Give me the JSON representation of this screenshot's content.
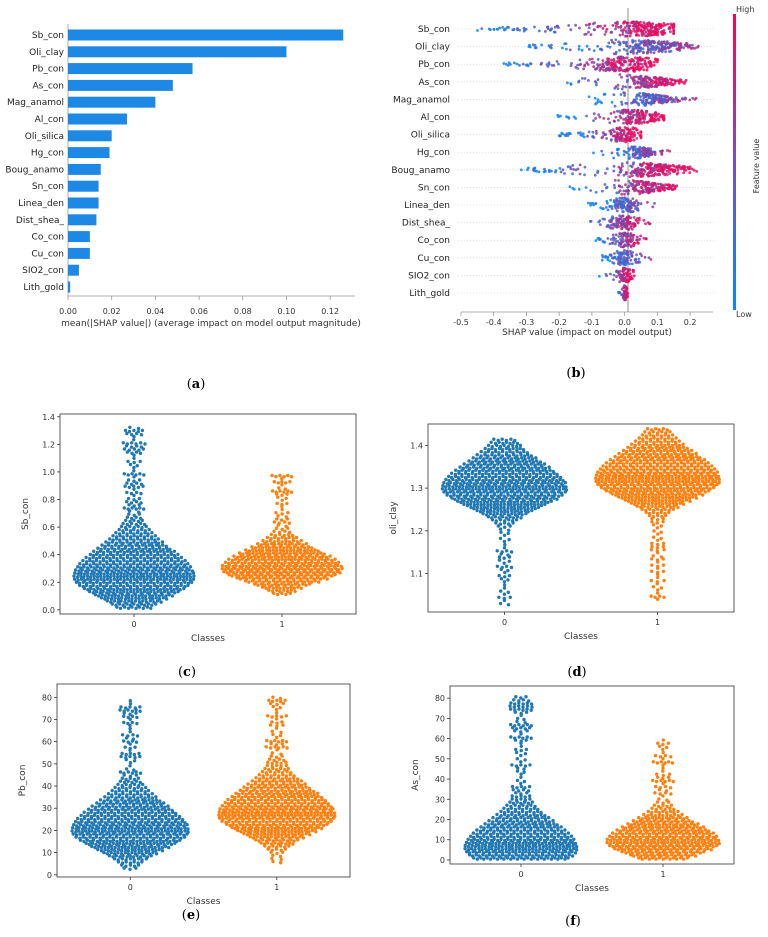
{
  "colors": {
    "bar": "#1e88e5",
    "blue": "#1f77b4",
    "orange": "#ff7f0e",
    "high": "#ff0052",
    "low": "#008bfb",
    "frame": "#333333"
  },
  "captions": {
    "a": "a",
    "b": "b",
    "c": "c",
    "d": "d",
    "e": "e",
    "f": "f"
  },
  "chart_data": [
    {
      "id": "a",
      "type": "bar",
      "orientation": "horizontal",
      "categories": [
        "Sb_con",
        "Oli_clay",
        "Pb_con",
        "As_con",
        "Mag_anamol",
        "Al_con",
        "Oli_silica",
        "Hg_con",
        "Boug_anamo",
        "Sn_con",
        "Linea_den",
        "Dist_shea_",
        "Co_con",
        "Cu_con",
        "SIO2_con",
        "Lith_gold"
      ],
      "values": [
        0.126,
        0.1,
        0.057,
        0.048,
        0.04,
        0.027,
        0.02,
        0.019,
        0.015,
        0.014,
        0.014,
        0.013,
        0.01,
        0.01,
        0.005,
        0.001
      ],
      "xlim": [
        0,
        0.13
      ],
      "xticks": [
        "0.00",
        "0.02",
        "0.04",
        "0.06",
        "0.08",
        "0.10",
        "0.12"
      ],
      "xlabel": "mean(|SHAP value|) (average impact on model output magnitude)"
    },
    {
      "id": "b",
      "type": "scatter",
      "subtype": "shap-beeswarm",
      "features": [
        "Sb_con",
        "Oli_clay",
        "Pb_con",
        "As_con",
        "Mag_anamol",
        "Al_con",
        "Oli_silica",
        "Hg_con",
        "Boug_anamo",
        "Sn_con",
        "Linea_den",
        "Dist_shea_",
        "Co_con",
        "Cu_con",
        "SIO2_con",
        "Lith_gold"
      ],
      "ranges": [
        [
          -0.45,
          0.15
        ],
        [
          -0.3,
          0.23
        ],
        [
          -0.38,
          0.1
        ],
        [
          -0.18,
          0.19
        ],
        [
          -0.12,
          0.22
        ],
        [
          -0.22,
          0.12
        ],
        [
          -0.2,
          0.05
        ],
        [
          -0.1,
          0.14
        ],
        [
          -0.32,
          0.22
        ],
        [
          -0.17,
          0.16
        ],
        [
          -0.12,
          0.1
        ],
        [
          -0.12,
          0.08
        ],
        [
          -0.09,
          0.07
        ],
        [
          -0.08,
          0.09
        ],
        [
          -0.08,
          0.03
        ],
        [
          -0.02,
          0.01
        ]
      ],
      "xlim": [
        -0.5,
        0.27
      ],
      "xticks": [
        "-0.5",
        "-0.4",
        "-0.3",
        "-0.2",
        "-0.1",
        "0.0",
        "0.1",
        "0.2"
      ],
      "xlabel": "SHAP value (impact on model output)",
      "colorbar": {
        "label": "Feature value",
        "high": "High",
        "low": "Low"
      }
    },
    {
      "id": "c",
      "type": "scatter",
      "subtype": "swarm",
      "ylabel": "Sb_con",
      "xlabel": "Classes",
      "categories": [
        "0",
        "1"
      ],
      "ylim": [
        -0.03,
        1.42
      ],
      "yticks": [
        "0.0",
        "0.2",
        "0.4",
        "0.6",
        "0.8",
        "1.0",
        "1.2",
        "1.4"
      ],
      "class_ranges": [
        [
          0.02,
          1.34
        ],
        [
          0.12,
          0.98
        ]
      ],
      "class_modes": [
        0.24,
        0.3
      ]
    },
    {
      "id": "d",
      "type": "scatter",
      "subtype": "swarm",
      "ylabel": "oli_clay",
      "xlabel": "Classes",
      "categories": [
        "0",
        "1"
      ],
      "ylim": [
        1.01,
        1.45
      ],
      "yticks": [
        "1.1",
        "1.2",
        "1.3",
        "1.4"
      ],
      "class_ranges": [
        [
          1.03,
          1.42
        ],
        [
          1.04,
          1.44
        ]
      ],
      "class_modes": [
        1.3,
        1.32
      ]
    },
    {
      "id": "e",
      "type": "scatter",
      "subtype": "swarm",
      "ylabel": "Pb_con",
      "xlabel": "Classes",
      "categories": [
        "0",
        "1"
      ],
      "ylim": [
        -1,
        86
      ],
      "yticks": [
        "0",
        "10",
        "20",
        "30",
        "40",
        "50",
        "60",
        "70",
        "80"
      ],
      "class_ranges": [
        [
          3,
          79
        ],
        [
          6,
          81
        ]
      ],
      "class_modes": [
        20,
        27
      ]
    },
    {
      "id": "f",
      "type": "scatter",
      "subtype": "swarm",
      "ylabel": "As_con",
      "xlabel": "Classes",
      "categories": [
        "0",
        "1"
      ],
      "ylim": [
        -2,
        86
      ],
      "yticks": [
        "0",
        "10",
        "20",
        "30",
        "40",
        "50",
        "60",
        "70",
        "80"
      ],
      "class_ranges": [
        [
          1,
          82
        ],
        [
          1,
          60
        ]
      ],
      "class_modes": [
        6,
        9
      ]
    }
  ]
}
